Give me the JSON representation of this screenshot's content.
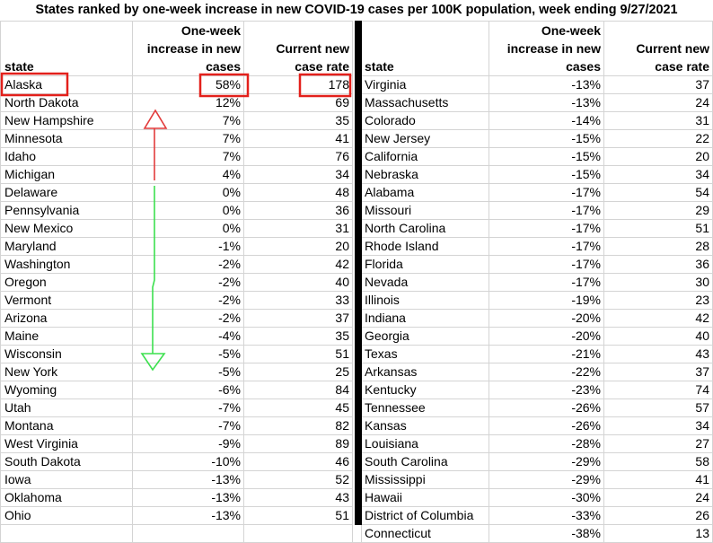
{
  "colors": {
    "gridline": "#d4d4d4",
    "divider": "#000000",
    "highlight_box": "#e3201b",
    "arrow_up": "#e23c3c",
    "arrow_down": "#3de04f"
  },
  "chart_data": {
    "type": "table",
    "title": "States ranked by one-week increase in new COVID-19 cases per 100K population, week ending 9/27/2021",
    "columns": {
      "state": "state",
      "change": "One-week increase in new cases",
      "rate": "Current new case rate"
    },
    "panels": [
      {
        "rows": [
          {
            "state": "Alaska",
            "change": "58%",
            "rate": 178,
            "highlighted": true
          },
          {
            "state": "North Dakota",
            "change": "12%",
            "rate": 69
          },
          {
            "state": "New Hampshire",
            "change": "7%",
            "rate": 35
          },
          {
            "state": "Minnesota",
            "change": "7%",
            "rate": 41
          },
          {
            "state": "Idaho",
            "change": "7%",
            "rate": 76
          },
          {
            "state": "Michigan",
            "change": "4%",
            "rate": 34
          },
          {
            "state": "Delaware",
            "change": "0%",
            "rate": 48
          },
          {
            "state": "Pennsylvania",
            "change": "0%",
            "rate": 36
          },
          {
            "state": "New Mexico",
            "change": "0%",
            "rate": 31
          },
          {
            "state": "Maryland",
            "change": "-1%",
            "rate": 20
          },
          {
            "state": "Washington",
            "change": "-2%",
            "rate": 42
          },
          {
            "state": "Oregon",
            "change": "-2%",
            "rate": 40
          },
          {
            "state": "Vermont",
            "change": "-2%",
            "rate": 33
          },
          {
            "state": "Arizona",
            "change": "-2%",
            "rate": 37
          },
          {
            "state": "Maine",
            "change": "-4%",
            "rate": 35
          },
          {
            "state": "Wisconsin",
            "change": "-5%",
            "rate": 51
          },
          {
            "state": "New York",
            "change": "-5%",
            "rate": 25
          },
          {
            "state": "Wyoming",
            "change": "-6%",
            "rate": 84
          },
          {
            "state": "Utah",
            "change": "-7%",
            "rate": 45
          },
          {
            "state": "Montana",
            "change": "-7%",
            "rate": 82
          },
          {
            "state": "West Virginia",
            "change": "-9%",
            "rate": 89
          },
          {
            "state": "South Dakota",
            "change": "-10%",
            "rate": 46
          },
          {
            "state": "Iowa",
            "change": "-13%",
            "rate": 52
          },
          {
            "state": "Oklahoma",
            "change": "-13%",
            "rate": 43
          },
          {
            "state": "Ohio",
            "change": "-13%",
            "rate": 51
          }
        ]
      },
      {
        "rows": [
          {
            "state": "Virginia",
            "change": "-13%",
            "rate": 37
          },
          {
            "state": "Massachusetts",
            "change": "-13%",
            "rate": 24
          },
          {
            "state": "Colorado",
            "change": "-14%",
            "rate": 31
          },
          {
            "state": "New Jersey",
            "change": "-15%",
            "rate": 22
          },
          {
            "state": "California",
            "change": "-15%",
            "rate": 20
          },
          {
            "state": "Nebraska",
            "change": "-15%",
            "rate": 34
          },
          {
            "state": "Alabama",
            "change": "-17%",
            "rate": 54
          },
          {
            "state": "Missouri",
            "change": "-17%",
            "rate": 29
          },
          {
            "state": "North Carolina",
            "change": "-17%",
            "rate": 51
          },
          {
            "state": "Rhode Island",
            "change": "-17%",
            "rate": 28
          },
          {
            "state": "Florida",
            "change": "-17%",
            "rate": 36
          },
          {
            "state": "Nevada",
            "change": "-17%",
            "rate": 30
          },
          {
            "state": "Illinois",
            "change": "-19%",
            "rate": 23
          },
          {
            "state": "Indiana",
            "change": "-20%",
            "rate": 42
          },
          {
            "state": "Georgia",
            "change": "-20%",
            "rate": 40
          },
          {
            "state": "Texas",
            "change": "-21%",
            "rate": 43
          },
          {
            "state": "Arkansas",
            "change": "-22%",
            "rate": 37
          },
          {
            "state": "Kentucky",
            "change": "-23%",
            "rate": 74
          },
          {
            "state": "Tennessee",
            "change": "-26%",
            "rate": 57
          },
          {
            "state": "Kansas",
            "change": "-26%",
            "rate": 34
          },
          {
            "state": "Louisiana",
            "change": "-28%",
            "rate": 27
          },
          {
            "state": "South Carolina",
            "change": "-29%",
            "rate": 58
          },
          {
            "state": "Mississippi",
            "change": "-29%",
            "rate": 41
          },
          {
            "state": "Hawaii",
            "change": "-30%",
            "rate": 24
          },
          {
            "state": "District of Columbia",
            "change": "-33%",
            "rate": 26
          },
          {
            "state": "Connecticut",
            "change": "-38%",
            "rate": 13
          }
        ]
      }
    ]
  }
}
